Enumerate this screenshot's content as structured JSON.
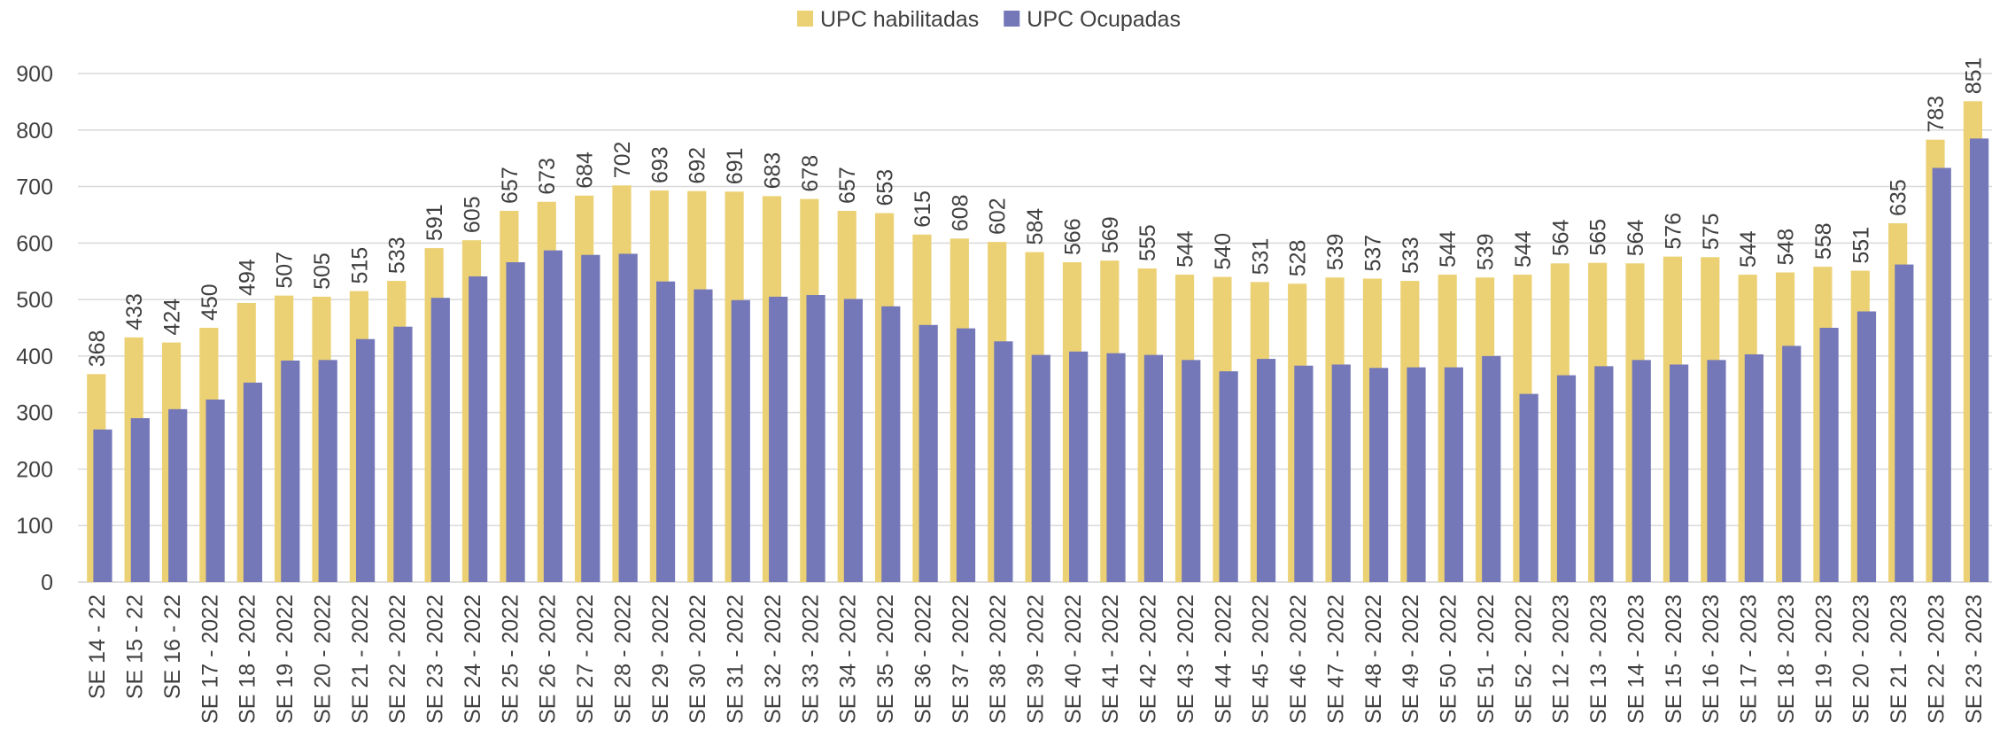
{
  "chart_data": {
    "type": "bar",
    "legend": "top",
    "categories": [
      "SE 14 - 22",
      "SE 15 - 22",
      "SE 16 - 22",
      "SE 17 - 2022",
      "SE 18 - 2022",
      "SE 19 - 2022",
      "SE 20 - 2022",
      "SE 21 - 2022",
      "SE 22 - 2022",
      "SE 23 - 2022",
      "SE 24 - 2022",
      "SE 25 - 2022",
      "SE 26 - 2022",
      "SE 27 - 2022",
      "SE 28 - 2022",
      "SE 29 - 2022",
      "SE 30 - 2022",
      "SE 31 - 2022",
      "SE 32 - 2022",
      "SE 33 - 2022",
      "SE 34 - 2022",
      "SE 35 - 2022",
      "SE 36 - 2022",
      "SE 37 - 2022",
      "SE 38 - 2022",
      "SE 39 - 2022",
      "SE 40 - 2022",
      "SE 41 - 2022",
      "SE 42 - 2022",
      "SE 43 - 2022",
      "SE 44 - 2022",
      "SE 45 - 2022",
      "SE 46 - 2022",
      "SE 47 - 2022",
      "SE 48 - 2022",
      "SE 49 - 2022",
      "SE 50 - 2022",
      "SE 51 - 2022",
      "SE 52 - 2022",
      "SE 12 - 2023",
      "SE 13 - 2023",
      "SE 14 - 2023",
      "SE 15 - 2023",
      "SE 16 - 2023",
      "SE 17 - 2023",
      "SE 18 - 2023",
      "SE 19 - 2023",
      "SE 20 - 2023",
      "SE 21 - 2023",
      "SE 22 - 2023",
      "SE 23 - 2023"
    ],
    "series": [
      {
        "name": "UPC habilitadas",
        "color": "#ecd174",
        "labels": true,
        "values": [
          368,
          433,
          424,
          450,
          494,
          507,
          505,
          515,
          533,
          591,
          605,
          657,
          673,
          684,
          702,
          693,
          692,
          691,
          683,
          678,
          657,
          653,
          615,
          608,
          602,
          584,
          566,
          569,
          555,
          544,
          540,
          531,
          528,
          539,
          537,
          533,
          544,
          539,
          544,
          564,
          565,
          564,
          576,
          575,
          544,
          548,
          558,
          551,
          635,
          783,
          851
        ]
      },
      {
        "name": "UPC Ocupadas",
        "color": "#7478b8",
        "labels": false,
        "values": [
          270,
          290,
          306,
          323,
          353,
          392,
          393,
          430,
          452,
          503,
          541,
          566,
          587,
          579,
          581,
          532,
          518,
          499,
          505,
          508,
          501,
          488,
          455,
          449,
          426,
          402,
          408,
          405,
          402,
          393,
          373,
          395,
          383,
          385,
          379,
          380,
          380,
          400,
          333,
          366,
          382,
          393,
          385,
          393,
          403,
          418,
          450,
          479,
          562,
          733,
          785
        ]
      }
    ],
    "ylim": [
      0,
      900
    ],
    "yticks": [
      0,
      100,
      200,
      300,
      400,
      500,
      600,
      700,
      800,
      900
    ],
    "grid": true
  }
}
